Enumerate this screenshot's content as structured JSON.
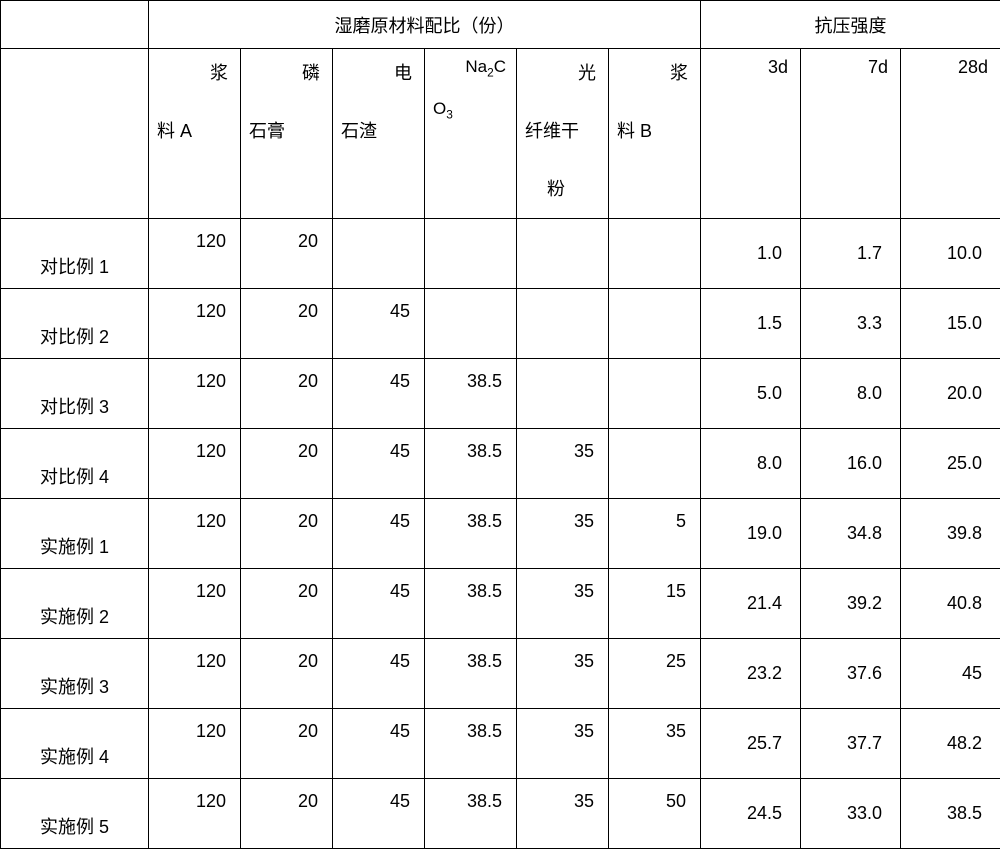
{
  "type": "table",
  "background_color": "#ffffff",
  "border_color": "#000000",
  "text_color": "#000000",
  "font_family": "Microsoft YaHei",
  "header_fontsize": 18,
  "cell_fontsize": 18,
  "group_headers": {
    "materials": "湿磨原材料配比（份）",
    "strength": "抗压强度"
  },
  "columns": {
    "slurryA_top": "浆",
    "slurryA_bot": "料 A",
    "phos_top": "磷",
    "phos_bot": "石膏",
    "elec_top": "电",
    "elec_bot": "石渣",
    "na2co3": "Na₂CO₃",
    "fiber_top": "光",
    "fiber_mid": "纤维干",
    "fiber_bot": "粉",
    "slurryB_top": "浆",
    "slurryB_bot": "料 B",
    "d3": "3d",
    "d7": "7d",
    "d28": "28d"
  },
  "rows": [
    {
      "label": "对比例 1",
      "slurryA": "120",
      "phos": "20",
      "elec": "",
      "na": "",
      "fiber": "",
      "slurryB": "",
      "d3": "1.0",
      "d7": "1.7",
      "d28": "10.0"
    },
    {
      "label": "对比例 2",
      "slurryA": "120",
      "phos": "20",
      "elec": "45",
      "na": "",
      "fiber": "",
      "slurryB": "",
      "d3": "1.5",
      "d7": "3.3",
      "d28": "15.0"
    },
    {
      "label": "对比例 3",
      "slurryA": "120",
      "phos": "20",
      "elec": "45",
      "na": "38.5",
      "fiber": "",
      "slurryB": "",
      "d3": "5.0",
      "d7": "8.0",
      "d28": "20.0"
    },
    {
      "label": "对比例 4",
      "slurryA": "120",
      "phos": "20",
      "elec": "45",
      "na": "38.5",
      "fiber": "35",
      "slurryB": "",
      "d3": "8.0",
      "d7": "16.0",
      "d28": "25.0"
    },
    {
      "label": "实施例 1",
      "slurryA": "120",
      "phos": "20",
      "elec": "45",
      "na": "38.5",
      "fiber": "35",
      "slurryB": "5",
      "d3": "19.0",
      "d7": "34.8",
      "d28": "39.8"
    },
    {
      "label": "实施例 2",
      "slurryA": "120",
      "phos": "20",
      "elec": "45",
      "na": "38.5",
      "fiber": "35",
      "slurryB": "15",
      "d3": "21.4",
      "d7": "39.2",
      "d28": "40.8"
    },
    {
      "label": "实施例 3",
      "slurryA": "120",
      "phos": "20",
      "elec": "45",
      "na": "38.5",
      "fiber": "35",
      "slurryB": "25",
      "d3": "23.2",
      "d7": "37.6",
      "d28": "45"
    },
    {
      "label": "实施例 4",
      "slurryA": "120",
      "phos": "20",
      "elec": "45",
      "na": "38.5",
      "fiber": "35",
      "slurryB": "35",
      "d3": "25.7",
      "d7": "37.7",
      "d28": "48.2"
    },
    {
      "label": "实施例 5",
      "slurryA": "120",
      "phos": "20",
      "elec": "45",
      "na": "38.5",
      "fiber": "35",
      "slurryB": "50",
      "d3": "24.5",
      "d7": "33.0",
      "d28": "38.5"
    }
  ]
}
